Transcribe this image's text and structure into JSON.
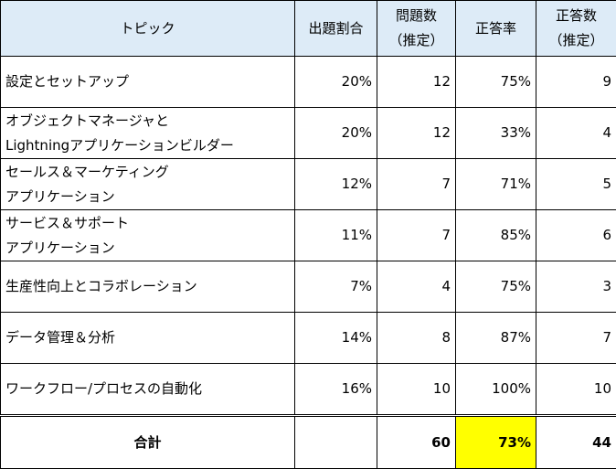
{
  "headers": {
    "topic": [
      "トピック"
    ],
    "ratio": [
      "出題割合"
    ],
    "questions": [
      "問題数",
      "（推定）"
    ],
    "rate": [
      "正答率"
    ],
    "correct": [
      "正答数",
      "（推定）"
    ]
  },
  "rows": [
    {
      "topic": [
        "設定とセットアップ"
      ],
      "ratio": "20%",
      "questions": "12",
      "rate": "75%",
      "correct": "9"
    },
    {
      "topic": [
        "オブジェクトマネージャと",
        "Lightningアプリケーションビルダー"
      ],
      "ratio": "20%",
      "questions": "12",
      "rate": "33%",
      "correct": "4"
    },
    {
      "topic": [
        "セールス＆マーケティング",
        "アプリケーション"
      ],
      "ratio": "12%",
      "questions": "7",
      "rate": "71%",
      "correct": "5"
    },
    {
      "topic": [
        "サービス＆サポート",
        "アプリケーション"
      ],
      "ratio": "11%",
      "questions": "7",
      "rate": "85%",
      "correct": "6"
    },
    {
      "topic": [
        "生産性向上とコラボレーション"
      ],
      "ratio": "7%",
      "questions": "4",
      "rate": "75%",
      "correct": "3"
    },
    {
      "topic": [
        "データ管理＆分析"
      ],
      "ratio": "14%",
      "questions": "8",
      "rate": "87%",
      "correct": "7"
    },
    {
      "topic": [
        "ワークフロー/プロセスの自動化"
      ],
      "ratio": "16%",
      "questions": "10",
      "rate": "100%",
      "correct": "10"
    }
  ],
  "total": {
    "label": "合計",
    "ratio": "",
    "questions": "60",
    "rate": "73%",
    "correct": "44"
  },
  "colors": {
    "header_bg": "#ddebf7",
    "highlight": "#ffff00"
  }
}
